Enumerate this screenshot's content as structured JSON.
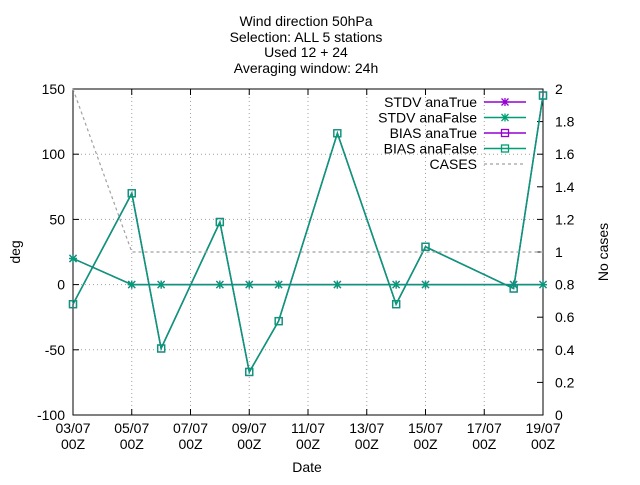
{
  "chart_data": {
    "type": "line",
    "title_lines": [
      "Wind direction 50hPa",
      "Selection: ALL      5 stations",
      "Used 12 + 24",
      "Averaging window: 24h"
    ],
    "xlabel": "Date",
    "ylabel": "deg",
    "y2label": "No cases",
    "xlim": [
      0,
      16
    ],
    "ylim": [
      -100,
      150
    ],
    "y2lim": [
      0,
      2
    ],
    "x_ticks": [
      {
        "x": 0,
        "line1": "03/07",
        "line2": "00Z"
      },
      {
        "x": 2,
        "line1": "05/07",
        "line2": "00Z"
      },
      {
        "x": 4,
        "line1": "07/07",
        "line2": "00Z"
      },
      {
        "x": 6,
        "line1": "09/07",
        "line2": "00Z"
      },
      {
        "x": 8,
        "line1": "11/07",
        "line2": "00Z"
      },
      {
        "x": 10,
        "line1": "13/07",
        "line2": "00Z"
      },
      {
        "x": 12,
        "line1": "15/07",
        "line2": "00Z"
      },
      {
        "x": 14,
        "line1": "17/07",
        "line2": "00Z"
      },
      {
        "x": 16,
        "line1": "19/07",
        "line2": "00Z"
      }
    ],
    "y_ticks": [
      150,
      100,
      50,
      0,
      -50,
      -100
    ],
    "y2_ticks": [
      "2",
      "1.8",
      "1.6",
      "1.4",
      "1.2",
      "1",
      "0.8",
      "0.6",
      "0.4",
      "0.2",
      "0"
    ],
    "grid": true,
    "legend_position": "top-right",
    "series": [
      {
        "name": "STDV anaTrue",
        "color": "#9400d3",
        "marker": "star",
        "axis": "y1",
        "dashed": false,
        "x": [
          0,
          2,
          3,
          5,
          6,
          7,
          9,
          11,
          12,
          15,
          16
        ],
        "y": [
          20,
          0,
          0,
          0,
          0,
          0,
          0,
          0,
          0,
          0,
          0
        ]
      },
      {
        "name": "STDV anaFalse",
        "color": "#009e73",
        "marker": "star",
        "axis": "y1",
        "dashed": false,
        "x": [
          0,
          2,
          3,
          5,
          6,
          7,
          9,
          11,
          12,
          15,
          16
        ],
        "y": [
          20,
          0,
          0,
          0,
          0,
          0,
          0,
          0,
          0,
          0,
          0
        ]
      },
      {
        "name": "BIAS anaTrue",
        "color": "#9400d3",
        "marker": "square",
        "axis": "y1",
        "dashed": false,
        "x": [
          0,
          2,
          3,
          5,
          6,
          7,
          9,
          11,
          12,
          15,
          16
        ],
        "y": [
          -15,
          70,
          -49,
          48,
          -67,
          -28,
          116,
          -15,
          29,
          -3,
          145
        ]
      },
      {
        "name": "BIAS anaFalse",
        "color": "#009e73",
        "marker": "square",
        "axis": "y1",
        "dashed": false,
        "x": [
          0,
          2,
          3,
          5,
          6,
          7,
          9,
          11,
          12,
          15,
          16
        ],
        "y": [
          -15,
          70,
          -49,
          48,
          -67,
          -28,
          116,
          -15,
          29,
          -3,
          145
        ]
      },
      {
        "name": "CASES",
        "color": "#a0a0a0",
        "marker": "none",
        "axis": "y2",
        "dashed": true,
        "x": [
          0,
          2,
          3,
          5,
          6,
          7,
          9,
          11,
          12,
          15,
          16
        ],
        "y": [
          2,
          1,
          1,
          1,
          1,
          1,
          1,
          1,
          1,
          1,
          1
        ]
      }
    ]
  }
}
